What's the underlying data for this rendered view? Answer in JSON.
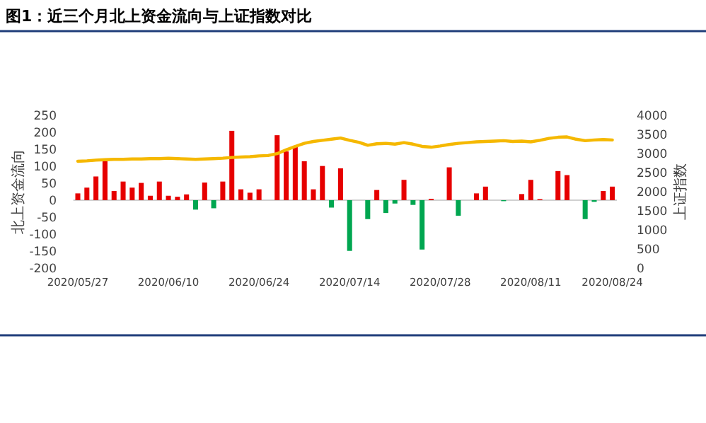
{
  "chart_data": {
    "type": "bar",
    "title": "图1：近三个月北上资金流向与上证指数对比",
    "ylabel": "北上资金流向",
    "y2label": "上证指数",
    "categories": [
      "2020/05/27",
      null,
      null,
      null,
      null,
      null,
      null,
      null,
      null,
      null,
      "2020/06/10",
      null,
      null,
      null,
      null,
      null,
      null,
      null,
      null,
      null,
      "2020/06/24",
      null,
      null,
      null,
      null,
      null,
      null,
      null,
      null,
      null,
      "2020/07/14",
      null,
      null,
      null,
      null,
      null,
      null,
      null,
      null,
      null,
      "2020/07/28",
      null,
      null,
      null,
      null,
      null,
      null,
      null,
      null,
      null,
      "2020/08/11",
      null,
      null,
      null,
      null,
      null,
      null,
      null,
      null,
      "2020/08/24"
    ],
    "ylim": [
      -200,
      250
    ],
    "yticks": [
      -200,
      -150,
      -100,
      -50,
      0,
      50,
      100,
      150,
      200,
      250
    ],
    "y2lim": [
      0,
      4000
    ],
    "y2ticks": [
      0,
      500,
      1000,
      1500,
      2000,
      2500,
      3000,
      3500,
      4000
    ],
    "series": [
      {
        "values": [
          20,
          37,
          70,
          115,
          27,
          55,
          37,
          51,
          13,
          55,
          13,
          10,
          17,
          -28,
          52,
          -24,
          55,
          205,
          32,
          22,
          32,
          null,
          192,
          144,
          161,
          115,
          32,
          101,
          -22,
          94,
          -150,
          null,
          -56,
          30,
          -38,
          -10,
          60,
          -14,
          -146,
          4,
          null,
          97,
          -46,
          null,
          20,
          40,
          null,
          -3,
          null,
          18,
          60,
          3,
          null,
          86,
          74,
          null,
          -56,
          -5,
          27,
          40
        ],
        "colors": [
          "#e60000",
          "#e60000",
          "#e60000",
          "#e60000",
          "#e60000",
          "#e60000",
          "#e60000",
          "#e60000",
          "#e60000",
          "#e60000",
          "#e60000",
          "#e60000",
          "#e60000",
          "#00a650",
          "#e60000",
          "#00a650",
          "#e60000",
          "#e60000",
          "#e60000",
          "#e60000",
          "#e60000",
          null,
          "#e60000",
          "#e60000",
          "#e60000",
          "#e60000",
          "#e60000",
          "#e60000",
          "#00a650",
          "#e60000",
          "#00a650",
          null,
          "#00a650",
          "#e60000",
          "#00a650",
          "#00a650",
          "#e60000",
          "#00a650",
          "#00a650",
          "#e60000",
          null,
          "#e60000",
          "#00a650",
          null,
          "#e60000",
          "#e60000",
          null,
          "#00a650",
          null,
          "#e60000",
          "#e60000",
          "#e60000",
          null,
          "#e60000",
          "#e60000",
          null,
          "#00a650",
          "#00a650",
          "#e60000",
          "#e60000"
        ]
      },
      {
        "type": "line",
        "axis": "y2",
        "color": "#f5b800",
        "values": [
          2800,
          2810,
          2830,
          2840,
          2850,
          2850,
          2860,
          2860,
          2870,
          2870,
          2880,
          2870,
          2860,
          2850,
          2860,
          2870,
          2880,
          2900,
          2910,
          2920,
          2940,
          2950,
          3000,
          3100,
          3190,
          3270,
          3320,
          3350,
          3380,
          3410,
          3350,
          3300,
          3220,
          3260,
          3270,
          3250,
          3290,
          3250,
          3190,
          3170,
          3200,
          3240,
          3270,
          3290,
          3310,
          3320,
          3330,
          3340,
          3320,
          3330,
          3310,
          3350,
          3400,
          3430,
          3440,
          3380,
          3340,
          3360,
          3370,
          3360
        ]
      }
    ]
  }
}
